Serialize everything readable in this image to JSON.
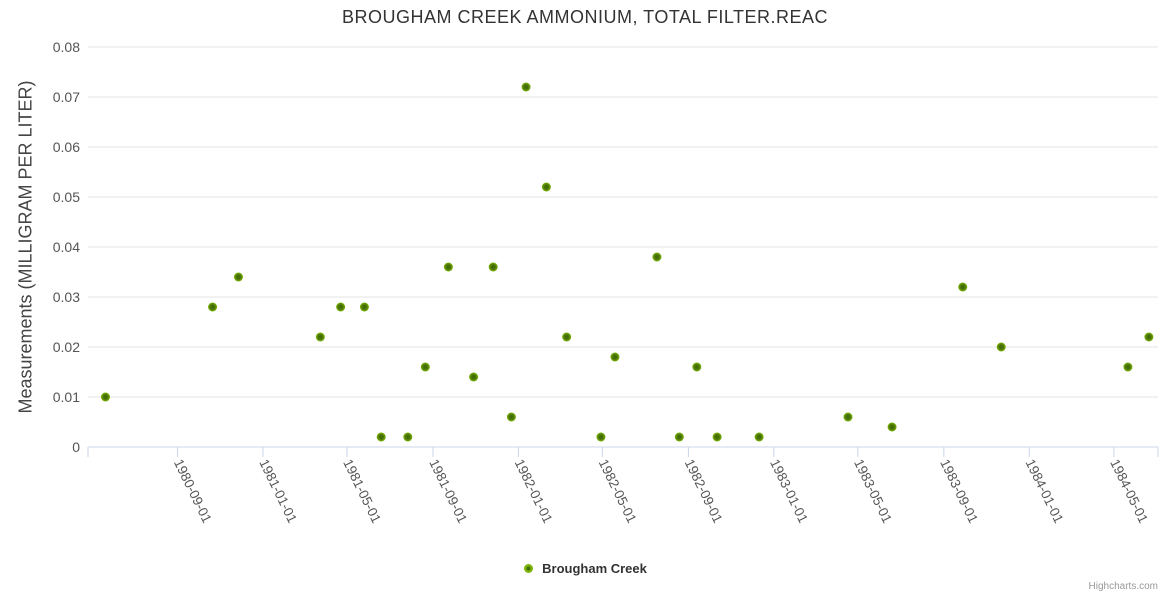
{
  "title": "BROUGHAM CREEK AMMONIUM, TOTAL FILTER.REAC",
  "y_axis": {
    "title": "Measurements (MILLIGRAM PER LITER)"
  },
  "legend": {
    "label": "Brougham Creek"
  },
  "credits": {
    "label": "Highcharts.com"
  },
  "colors": {
    "marker_outer": "#7cb50a",
    "marker_core": "#456e04",
    "grid": "#e6e6e6",
    "axis_line": "#ccd6eb",
    "title_text": "#333333",
    "tick_label_text": "#555555"
  },
  "chart_data": {
    "type": "scatter",
    "title": "BROUGHAM CREEK AMMONIUM, TOTAL FILTER.REAC",
    "xlabel": "",
    "ylabel": "Measurements (MILLIGRAM PER LITER)",
    "ylim": [
      0,
      0.08
    ],
    "y_ticks": [
      0,
      0.01,
      0.02,
      0.03,
      0.04,
      0.05,
      0.06,
      0.07,
      0.08
    ],
    "x_tick_labels": [
      "1980-09-01",
      "1981-01-01",
      "1981-05-01",
      "1981-09-01",
      "1982-01-01",
      "1982-05-01",
      "1982-09-01",
      "1983-01-01",
      "1983-05-01",
      "1983-09-01",
      "1984-01-01",
      "1984-05-01"
    ],
    "x_range": [
      "1980-04-26",
      "1984-07-03"
    ],
    "grid": true,
    "legend_position": "bottom-center",
    "series": [
      {
        "name": "Brougham Creek",
        "color": "#7cb50a",
        "points": [
          {
            "x": "1980-05-21",
            "y": 0.01
          },
          {
            "x": "1980-10-21",
            "y": 0.028
          },
          {
            "x": "1980-11-27",
            "y": 0.034
          },
          {
            "x": "1981-03-24",
            "y": 0.022
          },
          {
            "x": "1981-04-22",
            "y": 0.028
          },
          {
            "x": "1981-05-26",
            "y": 0.028
          },
          {
            "x": "1981-06-19",
            "y": 0.002
          },
          {
            "x": "1981-07-27",
            "y": 0.002
          },
          {
            "x": "1981-08-21",
            "y": 0.016
          },
          {
            "x": "1981-09-23",
            "y": 0.036
          },
          {
            "x": "1981-10-29",
            "y": 0.014
          },
          {
            "x": "1981-11-26",
            "y": 0.036
          },
          {
            "x": "1981-12-22",
            "y": 0.006
          },
          {
            "x": "1982-01-12",
            "y": 0.072
          },
          {
            "x": "1982-02-10",
            "y": 0.052
          },
          {
            "x": "1982-03-11",
            "y": 0.022
          },
          {
            "x": "1982-04-29",
            "y": 0.002
          },
          {
            "x": "1982-05-19",
            "y": 0.018
          },
          {
            "x": "1982-07-18",
            "y": 0.038
          },
          {
            "x": "1982-08-19",
            "y": 0.002
          },
          {
            "x": "1982-09-13",
            "y": 0.016
          },
          {
            "x": "1982-10-12",
            "y": 0.002
          },
          {
            "x": "1982-12-11",
            "y": 0.002
          },
          {
            "x": "1983-04-17",
            "y": 0.006
          },
          {
            "x": "1983-06-19",
            "y": 0.004
          },
          {
            "x": "1983-09-28",
            "y": 0.032
          },
          {
            "x": "1983-11-22",
            "y": 0.02
          },
          {
            "x": "1984-05-21",
            "y": 0.016
          },
          {
            "x": "1984-06-20",
            "y": 0.022
          }
        ]
      }
    ]
  }
}
